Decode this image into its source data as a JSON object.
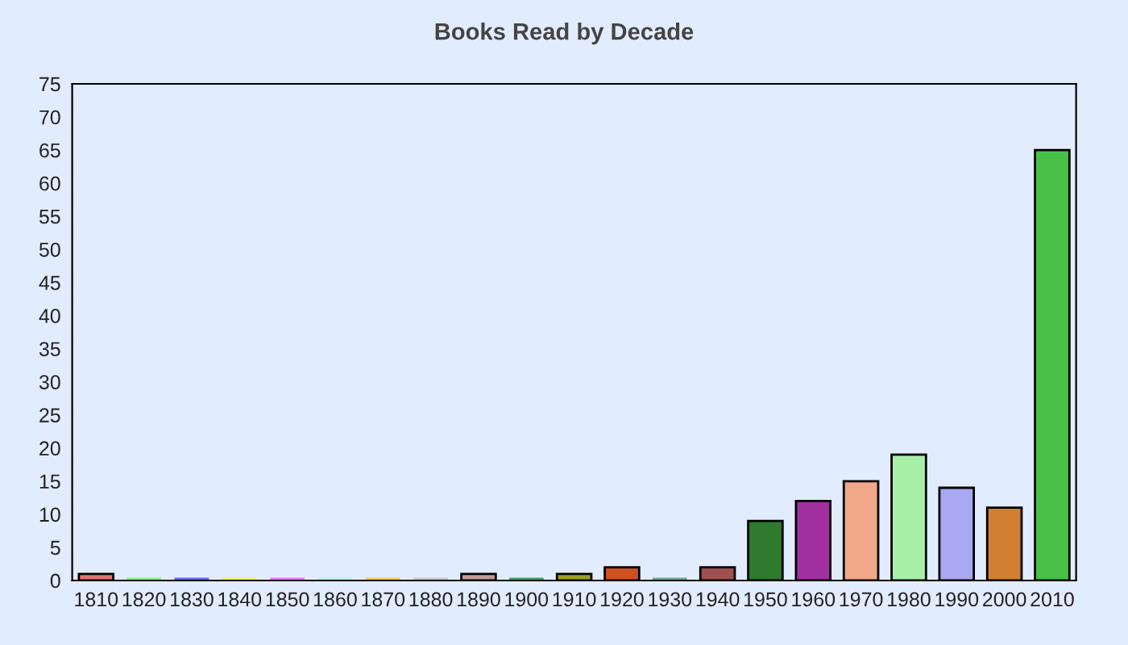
{
  "chart_data": {
    "type": "bar",
    "title": "Books Read by Decade",
    "categories": [
      "1810",
      "1820",
      "1830",
      "1840",
      "1850",
      "1860",
      "1870",
      "1880",
      "1890",
      "1900",
      "1910",
      "1920",
      "1930",
      "1940",
      "1950",
      "1960",
      "1970",
      "1980",
      "1990",
      "2000",
      "2010"
    ],
    "values": [
      1,
      0,
      0,
      0,
      0,
      0,
      0,
      0,
      1,
      0,
      1,
      2,
      0,
      2,
      9,
      12,
      15,
      19,
      14,
      11,
      65
    ],
    "colors": [
      "#e87070",
      "#80f080",
      "#6868e8",
      "#f0f070",
      "#f070f0",
      "#b8f0f0",
      "#f0c860",
      "#c8c8c8",
      "#c09a9a",
      "#40a070",
      "#a0a020",
      "#d05020",
      "#70a0a0",
      "#a05050",
      "#2e7a2e",
      "#a030a0",
      "#f0a888",
      "#a8f0a8",
      "#a8a8f0",
      "#d08030",
      "#48c048"
    ],
    "ylim": [
      0,
      75
    ],
    "yticks": [
      0,
      5,
      10,
      15,
      20,
      25,
      30,
      35,
      40,
      45,
      50,
      55,
      60,
      65,
      70,
      75
    ]
  }
}
